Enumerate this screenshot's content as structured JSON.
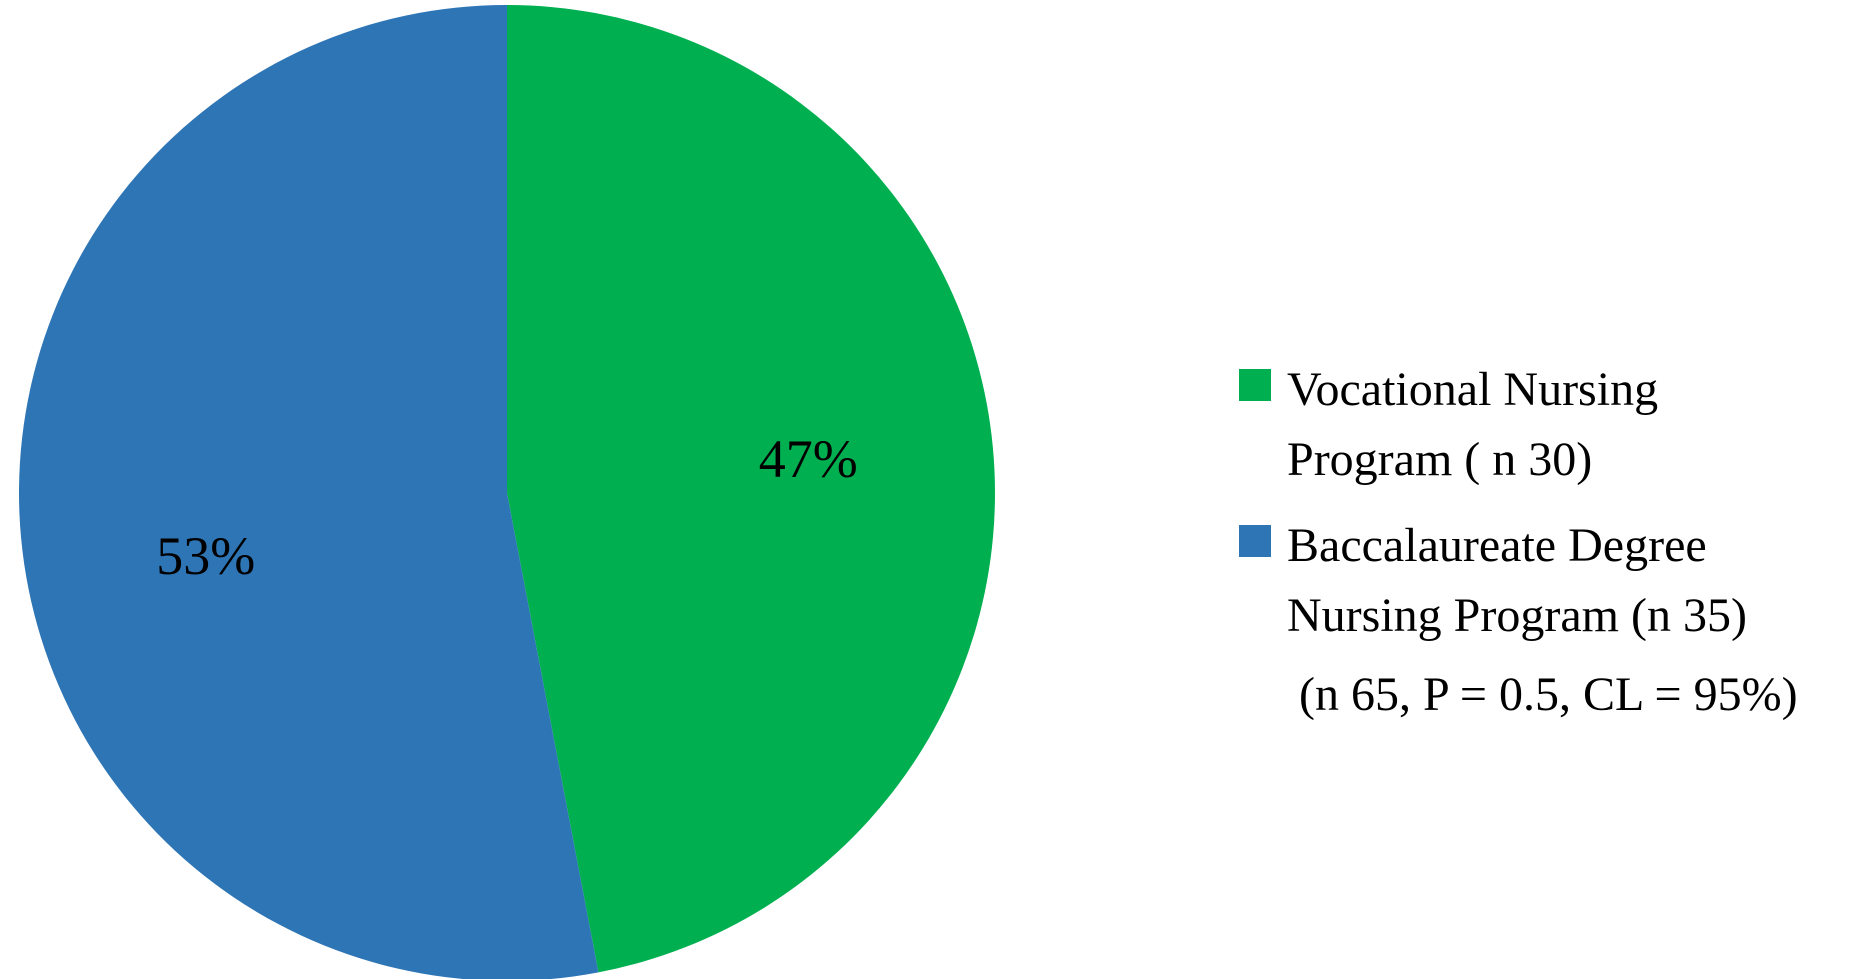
{
  "chart_data": {
    "type": "pie",
    "categories": [
      "Vocational Nursing Program ( n 30)",
      "Baccalaureate Degree Nursing Program (n 35)"
    ],
    "values": [
      47,
      53
    ],
    "value_labels": [
      "47%",
      "53%"
    ],
    "colors": [
      "#00b050",
      "#2e75b6"
    ],
    "annotation": "(n 65, P = 0.5, CL = 95%)"
  }
}
